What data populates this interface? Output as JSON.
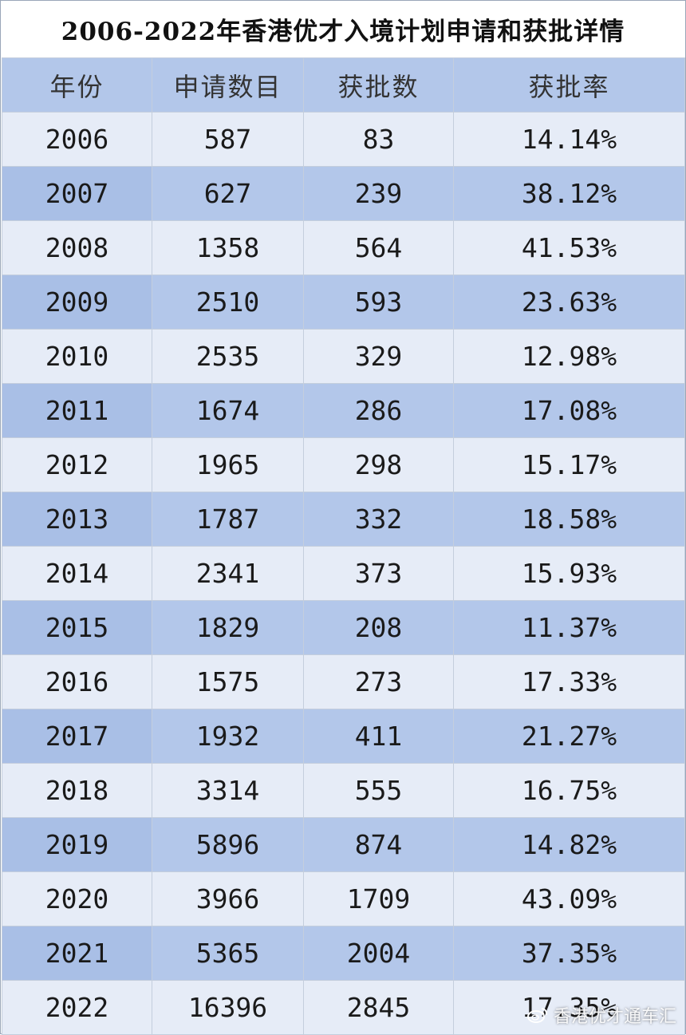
{
  "title": "2006-2022年香港优才入境计划申请和获批详情",
  "headers": [
    "年份",
    "申请数目",
    "获批数",
    "获批率"
  ],
  "rows": [
    [
      "2006",
      "587",
      "83",
      "14.14%"
    ],
    [
      "2007",
      "627",
      "239",
      "38.12%"
    ],
    [
      "2008",
      "1358",
      "564",
      "41.53%"
    ],
    [
      "2009",
      "2510",
      "593",
      "23.63%"
    ],
    [
      "2010",
      "2535",
      "329",
      "12.98%"
    ],
    [
      "2011",
      "1674",
      "286",
      "17.08%"
    ],
    [
      "2012",
      "1965",
      "298",
      "15.17%"
    ],
    [
      "2013",
      "1787",
      "332",
      "18.58%"
    ],
    [
      "2014",
      "2341",
      "373",
      "15.93%"
    ],
    [
      "2015",
      "1829",
      "208",
      "11.37%"
    ],
    [
      "2016",
      "1575",
      "273",
      "17.33%"
    ],
    [
      "2017",
      "1932",
      "411",
      "21.27%"
    ],
    [
      "2018",
      "3314",
      "555",
      "16.75%"
    ],
    [
      "2019",
      "5896",
      "874",
      "14.82%"
    ],
    [
      "2020",
      "3966",
      "1709",
      "43.09%"
    ],
    [
      "2021",
      "5365",
      "2004",
      "37.35%"
    ],
    [
      "2022",
      "16396",
      "2845",
      "17.35%"
    ]
  ],
  "watermark": {
    "text": "香港优才通车汇",
    "icon": "weibo-icon"
  },
  "colors": {
    "header_bg": "#b3c7ea",
    "row_light": "#e6ecf7",
    "row_dark": "#b3c7ea"
  }
}
